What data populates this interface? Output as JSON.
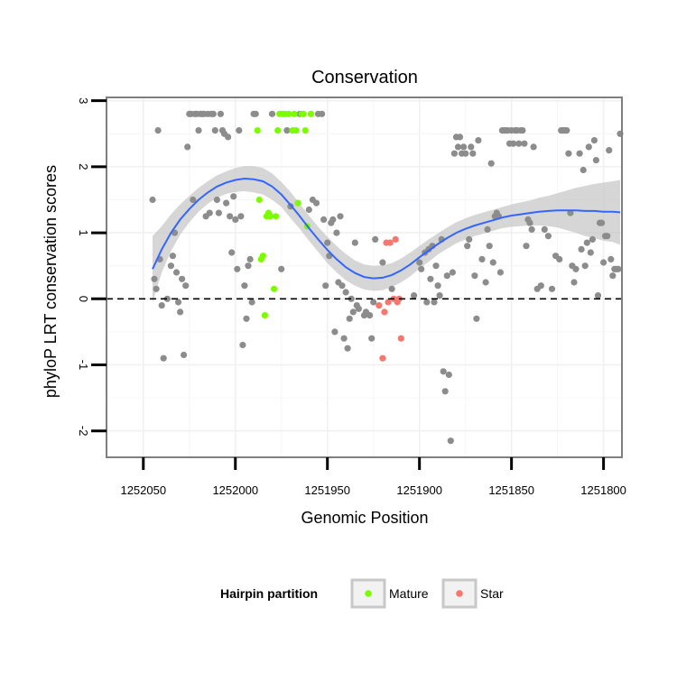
{
  "chart_data": {
    "type": "scatter",
    "title": "Conservation",
    "xlabel": "Genomic Position",
    "ylabel": "phyloP LRT conservation scores",
    "x_reversed": true,
    "xlim": [
      1252070,
      1251790
    ],
    "ylim": [
      -2.4,
      3.05
    ],
    "x_ticks": [
      1252050,
      1252000,
      1251950,
      1251900,
      1251850,
      1251800
    ],
    "x_tick_labels": [
      "1252050",
      "1252000",
      "1251950",
      "1251900",
      "1251850",
      "1251800"
    ],
    "y_ticks": [
      -2,
      -1,
      0,
      1,
      2,
      3
    ],
    "y_tick_labels": [
      "-2",
      "-1",
      "0",
      "1",
      "2",
      "3"
    ],
    "hline": 0,
    "grid": true,
    "legend": {
      "title": "Hairpin partition",
      "position": "bottom",
      "entries": [
        {
          "label": "Mature",
          "color": "#7cfc00"
        },
        {
          "label": "Star",
          "color": "#f8766d"
        }
      ]
    },
    "colors": {
      "other": "#8c8c8c",
      "mature": "#7cfc00",
      "star": "#f8766d",
      "smooth": "#3366ff",
      "ribbon": "#c8c8c8"
    },
    "series": [
      {
        "group": "other",
        "points": [
          [
            1252045,
            1.5
          ],
          [
            1252044,
            0.3
          ],
          [
            1252043,
            0.15
          ],
          [
            1252042,
            2.55
          ],
          [
            1252041,
            0.6
          ],
          [
            1252040,
            -0.1
          ],
          [
            1252039,
            -0.9
          ],
          [
            1252037,
            0.0
          ],
          [
            1252035,
            0.5
          ],
          [
            1252034,
            0.65
          ],
          [
            1252033,
            1.0
          ],
          [
            1252032,
            0.4
          ],
          [
            1252031,
            -0.05
          ],
          [
            1252030,
            -0.2
          ],
          [
            1252029,
            0.3
          ],
          [
            1252028,
            -0.85
          ],
          [
            1252027,
            0.2
          ],
          [
            1252026,
            2.3
          ],
          [
            1252025,
            2.8
          ],
          [
            1252024,
            2.8
          ],
          [
            1252023,
            1.5
          ],
          [
            1252022,
            2.8
          ],
          [
            1252021,
            2.8
          ],
          [
            1252020,
            2.55
          ],
          [
            1252019,
            2.8
          ],
          [
            1252018,
            2.8
          ],
          [
            1252017,
            2.8
          ],
          [
            1252016,
            1.25
          ],
          [
            1252015,
            2.8
          ],
          [
            1252014,
            1.3
          ],
          [
            1252013,
            2.8
          ],
          [
            1252012,
            2.8
          ],
          [
            1252011,
            2.55
          ],
          [
            1252010,
            1.5
          ],
          [
            1252009,
            1.3
          ],
          [
            1252008,
            2.8
          ],
          [
            1252007,
            2.55
          ],
          [
            1252006,
            2.5
          ],
          [
            1252005,
            1.45
          ],
          [
            1252004,
            2.45
          ],
          [
            1252003,
            1.25
          ],
          [
            1252002,
            0.7
          ],
          [
            1252001,
            1.55
          ],
          [
            1252000,
            1.2
          ],
          [
            1251999,
            0.45
          ],
          [
            1251998,
            2.55
          ],
          [
            1251997,
            1.25
          ],
          [
            1251996,
            -0.7
          ],
          [
            1251995,
            0.2
          ],
          [
            1251994,
            -0.3
          ],
          [
            1251993,
            0.5
          ],
          [
            1251992,
            0.6
          ],
          [
            1251991,
            -0.05
          ],
          [
            1251990,
            2.8
          ],
          [
            1251989,
            2.8
          ],
          [
            1251980,
            2.8
          ],
          [
            1251975,
            0.45
          ],
          [
            1251972,
            2.55
          ],
          [
            1251970,
            1.4
          ],
          [
            1251965,
            2.8
          ],
          [
            1251960,
            1.35
          ],
          [
            1251958,
            1.5
          ],
          [
            1251956,
            1.45
          ],
          [
            1251955,
            2.8
          ],
          [
            1251953,
            2.8
          ],
          [
            1251952,
            1.2
          ],
          [
            1251951,
            0.2
          ],
          [
            1251950,
            0.85
          ],
          [
            1251949,
            0.65
          ],
          [
            1251948,
            1.15
          ],
          [
            1251947,
            1.2
          ],
          [
            1251946,
            -0.5
          ],
          [
            1251945,
            1.0
          ],
          [
            1251944,
            0.25
          ],
          [
            1251943,
            1.25
          ],
          [
            1251942,
            0.2
          ],
          [
            1251941,
            -0.6
          ],
          [
            1251940,
            0.1
          ],
          [
            1251939,
            -0.75
          ],
          [
            1251938,
            -0.3
          ],
          [
            1251937,
            0.0
          ],
          [
            1251936,
            -0.2
          ],
          [
            1251935,
            0.85
          ],
          [
            1251934,
            -0.1
          ],
          [
            1251933,
            -0.15
          ],
          [
            1251930,
            -0.25
          ],
          [
            1251929,
            -0.2
          ],
          [
            1251927,
            -0.25
          ],
          [
            1251926,
            -0.6
          ],
          [
            1251925,
            -0.05
          ],
          [
            1251924,
            0.9
          ],
          [
            1251920,
            0.55
          ],
          [
            1251915,
            0.15
          ],
          [
            1251903,
            0.05
          ],
          [
            1251900,
            0.55
          ],
          [
            1251899,
            0.45
          ],
          [
            1251897,
            0.7
          ],
          [
            1251896,
            -0.05
          ],
          [
            1251895,
            0.75
          ],
          [
            1251894,
            0.3
          ],
          [
            1251893,
            0.8
          ],
          [
            1251892,
            -0.05
          ],
          [
            1251891,
            0.5
          ],
          [
            1251890,
            0.2
          ],
          [
            1251889,
            0.05
          ],
          [
            1251888,
            0.9
          ],
          [
            1251887,
            -1.1
          ],
          [
            1251886,
            -1.4
          ],
          [
            1251885,
            0.35
          ],
          [
            1251884,
            -1.15
          ],
          [
            1251883,
            -2.15
          ],
          [
            1251882,
            0.4
          ],
          [
            1251881,
            2.2
          ],
          [
            1251880,
            2.45
          ],
          [
            1251879,
            2.3
          ],
          [
            1251878,
            2.45
          ],
          [
            1251877,
            2.2
          ],
          [
            1251876,
            2.3
          ],
          [
            1251875,
            2.2
          ],
          [
            1251874,
            0.8
          ],
          [
            1251873,
            0.9
          ],
          [
            1251872,
            2.3
          ],
          [
            1251871,
            2.2
          ],
          [
            1251870,
            0.35
          ],
          [
            1251869,
            -0.3
          ],
          [
            1251868,
            2.4
          ],
          [
            1251866,
            0.6
          ],
          [
            1251864,
            0.25
          ],
          [
            1251863,
            1.05
          ],
          [
            1251862,
            0.8
          ],
          [
            1251861,
            2.05
          ],
          [
            1251860,
            0.55
          ],
          [
            1251859,
            1.25
          ],
          [
            1251858,
            1.3
          ],
          [
            1251857,
            1.25
          ],
          [
            1251856,
            0.4
          ],
          [
            1251855,
            2.55
          ],
          [
            1251854,
            2.55
          ],
          [
            1251853,
            2.55
          ],
          [
            1251852,
            2.55
          ],
          [
            1251851,
            2.35
          ],
          [
            1251850,
            2.55
          ],
          [
            1251849,
            2.35
          ],
          [
            1251848,
            2.55
          ],
          [
            1251847,
            2.55
          ],
          [
            1251846,
            2.35
          ],
          [
            1251845,
            2.55
          ],
          [
            1251844,
            2.55
          ],
          [
            1251843,
            2.35
          ],
          [
            1251842,
            0.8
          ],
          [
            1251841,
            1.2
          ],
          [
            1251840,
            1.15
          ],
          [
            1251839,
            1.05
          ],
          [
            1251838,
            2.3
          ],
          [
            1251836,
            0.15
          ],
          [
            1251834,
            0.2
          ],
          [
            1251832,
            1.05
          ],
          [
            1251830,
            0.95
          ],
          [
            1251828,
            0.15
          ],
          [
            1251826,
            0.65
          ],
          [
            1251824,
            0.6
          ],
          [
            1251823,
            2.55
          ],
          [
            1251822,
            2.55
          ],
          [
            1251821,
            2.55
          ],
          [
            1251820,
            2.55
          ],
          [
            1251819,
            2.2
          ],
          [
            1251818,
            1.3
          ],
          [
            1251817,
            0.5
          ],
          [
            1251816,
            0.25
          ],
          [
            1251815,
            0.45
          ],
          [
            1251813,
            2.2
          ],
          [
            1251812,
            0.75
          ],
          [
            1251811,
            1.95
          ],
          [
            1251810,
            0.5
          ],
          [
            1251809,
            0.85
          ],
          [
            1251808,
            2.3
          ],
          [
            1251807,
            0.7
          ],
          [
            1251806,
            0.9
          ],
          [
            1251805,
            2.4
          ],
          [
            1251804,
            2.1
          ],
          [
            1251803,
            0.05
          ],
          [
            1251802,
            1.15
          ],
          [
            1251801,
            1.15
          ],
          [
            1251800,
            0.55
          ],
          [
            1251799,
            0.95
          ],
          [
            1251798,
            0.95
          ],
          [
            1251797,
            2.25
          ],
          [
            1251796,
            0.6
          ],
          [
            1251795,
            0.35
          ],
          [
            1251794,
            0.45
          ],
          [
            1251793,
            0.45
          ],
          [
            1251792,
            0.45
          ],
          [
            1251791,
            2.5
          ]
        ]
      },
      {
        "group": "mature",
        "name": "Mature",
        "points": [
          [
            1251988,
            2.55
          ],
          [
            1251987,
            1.5
          ],
          [
            1251986,
            0.6
          ],
          [
            1251985,
            0.65
          ],
          [
            1251984,
            -0.25
          ],
          [
            1251983,
            1.25
          ],
          [
            1251982,
            1.3
          ],
          [
            1251981,
            1.25
          ],
          [
            1251979,
            0.15
          ],
          [
            1251978,
            1.25
          ],
          [
            1251977,
            2.55
          ],
          [
            1251976,
            2.8
          ],
          [
            1251974,
            2.8
          ],
          [
            1251973,
            2.8
          ],
          [
            1251971,
            2.8
          ],
          [
            1251969,
            2.55
          ],
          [
            1251968,
            2.8
          ],
          [
            1251967,
            2.55
          ],
          [
            1251966,
            1.45
          ],
          [
            1251964,
            2.8
          ],
          [
            1251963,
            2.8
          ],
          [
            1251962,
            2.55
          ],
          [
            1251961,
            1.1
          ],
          [
            1251959,
            2.8
          ]
        ]
      },
      {
        "group": "star",
        "name": "Star",
        "points": [
          [
            1251922,
            -0.1
          ],
          [
            1251920,
            -0.9
          ],
          [
            1251919,
            -0.2
          ],
          [
            1251918,
            0.85
          ],
          [
            1251917,
            -0.05
          ],
          [
            1251916,
            0.85
          ],
          [
            1251914,
            0.0
          ],
          [
            1251913,
            0.9
          ],
          [
            1251912,
            -0.05
          ],
          [
            1251911,
            0.0
          ],
          [
            1251910,
            -0.6
          ]
        ]
      }
    ],
    "smooth": {
      "x": [
        1252045,
        1252040,
        1252035,
        1252030,
        1252025,
        1252020,
        1252015,
        1252010,
        1252005,
        1252000,
        1251995,
        1251990,
        1251985,
        1251980,
        1251975,
        1251970,
        1251965,
        1251960,
        1251955,
        1251950,
        1251945,
        1251940,
        1251935,
        1251930,
        1251925,
        1251920,
        1251915,
        1251910,
        1251905,
        1251900,
        1251895,
        1251890,
        1251885,
        1251880,
        1251875,
        1251870,
        1251865,
        1251860,
        1251855,
        1251850,
        1251845,
        1251840,
        1251835,
        1251830,
        1251825,
        1251820,
        1251815,
        1251810,
        1251805,
        1251800,
        1251795,
        1251791
      ],
      "y": [
        0.45,
        0.75,
        1.0,
        1.2,
        1.36,
        1.5,
        1.61,
        1.7,
        1.76,
        1.8,
        1.82,
        1.81,
        1.78,
        1.7,
        1.58,
        1.42,
        1.25,
        1.07,
        0.9,
        0.74,
        0.6,
        0.48,
        0.39,
        0.33,
        0.31,
        0.32,
        0.36,
        0.43,
        0.52,
        0.63,
        0.73,
        0.83,
        0.92,
        1.0,
        1.06,
        1.11,
        1.15,
        1.19,
        1.23,
        1.26,
        1.28,
        1.3,
        1.32,
        1.33,
        1.34,
        1.34,
        1.34,
        1.33,
        1.33,
        1.32,
        1.32,
        1.31
      ],
      "upper": [
        0.95,
        1.1,
        1.28,
        1.43,
        1.56,
        1.68,
        1.78,
        1.87,
        1.93,
        1.98,
        2.01,
        2.01,
        1.98,
        1.9,
        1.77,
        1.62,
        1.44,
        1.26,
        1.09,
        0.94,
        0.8,
        0.68,
        0.58,
        0.52,
        0.5,
        0.51,
        0.54,
        0.61,
        0.7,
        0.8,
        0.9,
        0.99,
        1.08,
        1.16,
        1.22,
        1.27,
        1.31,
        1.35,
        1.39,
        1.43,
        1.46,
        1.49,
        1.53,
        1.56,
        1.6,
        1.64,
        1.68,
        1.71,
        1.74,
        1.76,
        1.78,
        1.8
      ],
      "lower": [
        -0.05,
        0.4,
        0.72,
        0.97,
        1.16,
        1.32,
        1.44,
        1.53,
        1.59,
        1.62,
        1.63,
        1.61,
        1.58,
        1.5,
        1.39,
        1.22,
        1.06,
        0.88,
        0.71,
        0.54,
        0.4,
        0.28,
        0.2,
        0.14,
        0.12,
        0.13,
        0.18,
        0.25,
        0.34,
        0.46,
        0.56,
        0.67,
        0.76,
        0.84,
        0.9,
        0.95,
        0.99,
        1.03,
        1.07,
        1.09,
        1.1,
        1.11,
        1.11,
        1.1,
        1.08,
        1.04,
        1.0,
        0.95,
        0.92,
        0.88,
        0.86,
        0.82
      ]
    }
  }
}
